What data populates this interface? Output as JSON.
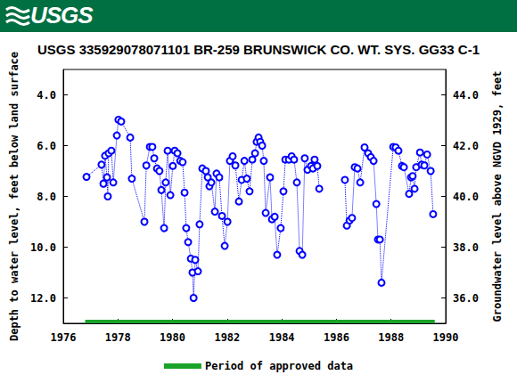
{
  "header": {
    "logo_text": "USGS"
  },
  "chart_data": {
    "type": "line",
    "title": "USGS 335929078071101 BR-259 BRUNSWICK CO. WT. SYS. GG33 C-1",
    "y_label": "Depth to water level, feet below land surface",
    "y2_label": "Groundwater level above NGVD 1929, feet",
    "xlim": [
      1976,
      1990
    ],
    "xticks": [
      1976,
      1978,
      1980,
      1982,
      1984,
      1986,
      1988,
      1990
    ],
    "ylim": [
      13,
      3
    ],
    "yticks": [
      {
        "value": 4,
        "label": "4.0"
      },
      {
        "value": 6,
        "label": "6.0"
      },
      {
        "value": 8,
        "label": "8.0"
      },
      {
        "value": 10,
        "label": "10.0"
      },
      {
        "value": 12,
        "label": "12.0"
      }
    ],
    "y2lim": [
      35,
      45
    ],
    "y2ticks": [
      {
        "value": 36,
        "label": "36.0"
      },
      {
        "value": 38,
        "label": "38.0"
      },
      {
        "value": 40,
        "label": "40.0"
      },
      {
        "value": 42,
        "label": "42.0"
      },
      {
        "value": 44,
        "label": "44.0"
      }
    ],
    "grid": false,
    "legend": "bottom",
    "series": [
      {
        "color": "#0000ff",
        "marker": "circle",
        "line_style": "dotted",
        "x": [
          1976.85,
          1977.4,
          1977.47,
          1977.53,
          1977.6,
          1977.63,
          1977.66,
          1977.76,
          1977.83,
          1977.96,
          1978.02,
          1978.12,
          1978.45,
          1978.51,
          1978.97,
          1979.04,
          1979.17,
          1979.26,
          1979.33,
          1979.43,
          1979.52,
          1979.59,
          1979.69,
          1979.75,
          1979.82,
          1979.92,
          1980.01,
          1980.08,
          1980.18,
          1980.28,
          1980.37,
          1980.44,
          1980.5,
          1980.57,
          1980.67,
          1980.73,
          1980.77,
          1980.83,
          1980.93,
          1980.99,
          1981.09,
          1981.22,
          1981.29,
          1981.35,
          1981.42,
          1981.55,
          1981.61,
          1981.71,
          1981.81,
          1981.91,
          1982.01,
          1982.1,
          1982.2,
          1982.3,
          1982.43,
          1982.53,
          1982.63,
          1982.72,
          1982.82,
          1982.92,
          1983.02,
          1983.08,
          1983.15,
          1983.21,
          1983.28,
          1983.34,
          1983.41,
          1983.57,
          1983.64,
          1983.74,
          1983.83,
          1983.96,
          1984.06,
          1984.13,
          1984.26,
          1984.36,
          1984.45,
          1984.55,
          1984.65,
          1984.75,
          1984.84,
          1984.94,
          1985.07,
          1985.14,
          1985.2,
          1985.3,
          1985.37,
          1985.8,
          1986.31,
          1986.38,
          1986.48,
          1986.57,
          1986.67,
          1986.77,
          1986.87,
          1987.03,
          1987.16,
          1987.26,
          1987.36,
          1987.46,
          1987.52,
          1987.59,
          1987.65,
          1988.08,
          1988.17,
          1988.27,
          1988.4,
          1988.47,
          1988.66,
          1988.73,
          1988.79,
          1988.86,
          1988.92,
          1989.06,
          1989.12,
          1989.22,
          1989.32,
          1989.45,
          1989.54
        ],
        "values": [
          7.23,
          6.75,
          7.5,
          6.4,
          7.25,
          8.0,
          6.3,
          6.2,
          7.45,
          5.6,
          4.98,
          5.05,
          5.68,
          7.3,
          9.0,
          6.78,
          6.05,
          6.05,
          6.5,
          6.9,
          7.0,
          7.75,
          9.25,
          7.45,
          6.2,
          7.95,
          6.8,
          6.2,
          6.3,
          6.6,
          6.65,
          7.85,
          9.25,
          9.8,
          10.45,
          11.0,
          12.0,
          10.5,
          10.95,
          9.1,
          6.9,
          7.0,
          7.25,
          7.6,
          7.45,
          8.6,
          7.1,
          7.25,
          8.77,
          9.95,
          9.0,
          6.6,
          6.42,
          6.78,
          8.2,
          7.35,
          6.6,
          7.3,
          7.8,
          6.55,
          6.3,
          5.85,
          5.68,
          5.85,
          6.0,
          6.6,
          8.65,
          7.25,
          8.9,
          8.8,
          10.3,
          9.25,
          7.8,
          6.55,
          6.55,
          6.42,
          6.55,
          7.45,
          10.15,
          10.3,
          6.5,
          6.95,
          6.8,
          6.9,
          6.55,
          6.8,
          7.7,
          null,
          7.35,
          9.15,
          8.95,
          8.85,
          6.85,
          6.9,
          7.45,
          6.07,
          6.3,
          6.45,
          6.6,
          8.3,
          9.7,
          9.7,
          11.4,
          6.05,
          6.07,
          6.2,
          6.8,
          6.85,
          7.9,
          7.25,
          7.2,
          7.7,
          6.85,
          6.27,
          6.75,
          6.78,
          6.35,
          7.0,
          8.7
        ]
      },
      {
        "name": "Period of approved data",
        "color": "#1aa32a",
        "line_style": "solid",
        "x": [
          1976.8,
          1989.6
        ],
        "values": [
          12.93,
          12.93
        ]
      }
    ]
  }
}
